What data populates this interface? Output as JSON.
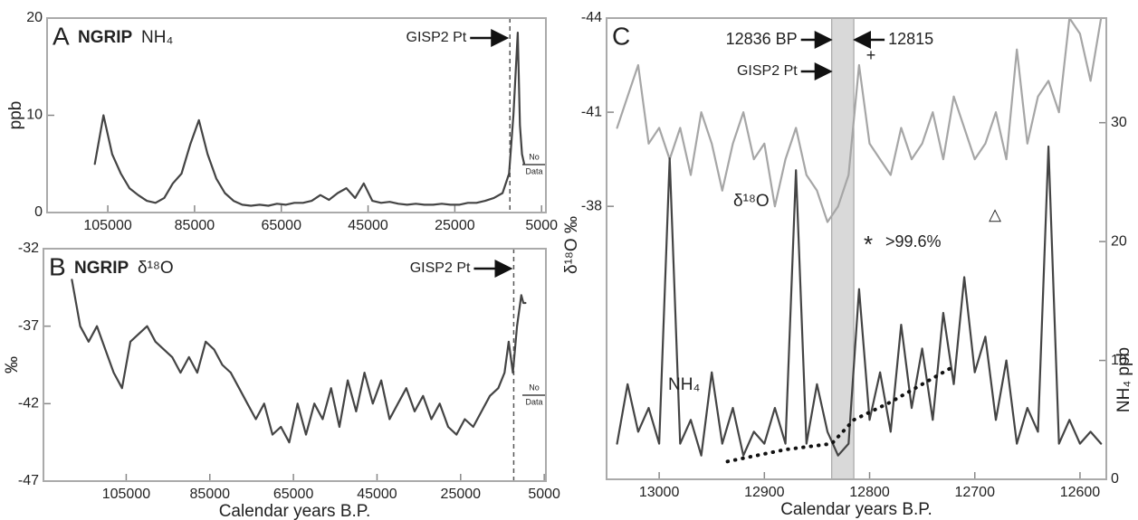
{
  "chart_data": [
    {
      "type": "line",
      "panel": "A",
      "title": "NGRIP",
      "subtitle": "NH₄",
      "ylabel": "ppb",
      "reference_line": 12300,
      "reference_label": "GISP2 Pt",
      "no_data_label": [
        "No",
        "Data"
      ],
      "color": "#444444",
      "xlim": [
        119000,
        4000
      ],
      "xticks": [
        105000,
        85000,
        65000,
        45000,
        25000,
        5000
      ],
      "ylim": [
        0,
        20
      ],
      "yticks": [
        0,
        10,
        20
      ],
      "x": [
        108000,
        106000,
        104000,
        102000,
        100000,
        98000,
        96000,
        94000,
        92000,
        90000,
        88000,
        86000,
        84000,
        82000,
        80000,
        78000,
        76000,
        74000,
        72000,
        70000,
        68000,
        66000,
        64000,
        62000,
        60000,
        58000,
        56000,
        54000,
        52000,
        50000,
        48000,
        46000,
        44000,
        42000,
        40000,
        38000,
        36000,
        34000,
        32000,
        30000,
        28000,
        26000,
        24000,
        22000,
        20000,
        18000,
        16000,
        14000,
        12500,
        11500,
        10500,
        10000,
        9500,
        9000
      ],
      "values": [
        5,
        10,
        6,
        4,
        2.5,
        1.8,
        1.2,
        1,
        1.5,
        3,
        4,
        7,
        9.5,
        6,
        3.5,
        2,
        1.2,
        0.8,
        0.7,
        0.8,
        0.7,
        0.9,
        0.8,
        1,
        1,
        1.2,
        1.8,
        1.3,
        2,
        2.5,
        1.5,
        3,
        1.2,
        1,
        1.1,
        0.9,
        0.8,
        0.9,
        0.8,
        0.8,
        0.9,
        0.8,
        0.8,
        1,
        1,
        1.2,
        1.5,
        2,
        4,
        10,
        18.5,
        9,
        6,
        5
      ]
    },
    {
      "type": "line",
      "panel": "B",
      "title": "NGRIP",
      "subtitle": "δ¹⁸O",
      "ylabel": "‰",
      "xlabel": "Calendar years B.P.",
      "reference_line": 12300,
      "reference_label": "GISP2 Pt",
      "no_data_label": [
        "No",
        "Data"
      ],
      "color": "#444444",
      "xlim": [
        124800,
        4600
      ],
      "xticks": [
        105000,
        85000,
        65000,
        45000,
        25000,
        5000
      ],
      "ylim": [
        -47,
        -32
      ],
      "yticks": [
        -47,
        -42,
        -37,
        -32
      ],
      "x": [
        118000,
        116000,
        114000,
        112000,
        110000,
        108000,
        106000,
        104000,
        102000,
        100000,
        98000,
        96000,
        94000,
        92000,
        90000,
        88000,
        86000,
        84000,
        82000,
        80000,
        78000,
        76000,
        74000,
        72000,
        70000,
        68000,
        66000,
        64000,
        62000,
        60000,
        58000,
        56000,
        54000,
        52000,
        50000,
        48000,
        46000,
        44000,
        42000,
        40000,
        38000,
        36000,
        34000,
        32000,
        30000,
        28000,
        26000,
        24000,
        22000,
        20000,
        18000,
        16000,
        14500,
        13500,
        12500,
        11500,
        10500,
        10000,
        9500
      ],
      "values": [
        -34,
        -37,
        -38,
        -37,
        -38.5,
        -40,
        -41,
        -38,
        -37.5,
        -37,
        -38,
        -38.5,
        -39,
        -40,
        -39,
        -40,
        -38,
        -38.5,
        -39.5,
        -40,
        -41,
        -42,
        -43,
        -42,
        -44,
        -43.5,
        -44.5,
        -42,
        -44,
        -42,
        -43,
        -41,
        -43.5,
        -40.5,
        -42.5,
        -40,
        -42,
        -40.5,
        -43,
        -42,
        -41,
        -42.5,
        -41.5,
        -43,
        -42,
        -43.5,
        -44,
        -43,
        -43.5,
        -42.5,
        -41.5,
        -41,
        -40,
        -38,
        -40,
        -37,
        -35,
        -35.5,
        -35.5
      ]
    },
    {
      "type": "line",
      "panel": "C",
      "xlabel": "Calendar years B.P.",
      "ylabel": "δ¹⁸O ‰",
      "y2label": "NH₄ ppb",
      "band": [
        12836,
        12815
      ],
      "band_labels": [
        "12836 BP",
        "12815"
      ],
      "reference_label": "GISP2 Pt",
      "annotations": [
        "+",
        "*",
        ">99.6%",
        "△"
      ],
      "xlim": [
        13050,
        12575
      ],
      "xticks": [
        13000,
        12900,
        12800,
        12700,
        12600
      ],
      "ylim": [
        -29.3,
        -44
      ],
      "yticks": [
        -44,
        -41,
        -38
      ],
      "y2lim": [
        0,
        38.8
      ],
      "y2ticks": [
        0,
        10,
        20,
        30
      ],
      "x": [
        13040,
        13030,
        13020,
        13010,
        13000,
        12990,
        12980,
        12970,
        12960,
        12950,
        12940,
        12930,
        12920,
        12910,
        12900,
        12890,
        12880,
        12870,
        12860,
        12850,
        12840,
        12830,
        12820,
        12810,
        12800,
        12790,
        12780,
        12770,
        12760,
        12750,
        12740,
        12730,
        12720,
        12710,
        12700,
        12690,
        12680,
        12670,
        12660,
        12650,
        12640,
        12630,
        12620,
        12610,
        12600,
        12590,
        12580
      ],
      "series": [
        {
          "name": "δ¹⁸O",
          "color": "#a6a6a6",
          "values": [
            -40.5,
            -41.5,
            -42.5,
            -40,
            -40.5,
            -39.5,
            -40.5,
            -39,
            -41,
            -40,
            -38.5,
            -40,
            -41,
            -39.5,
            -40,
            -38,
            -39.5,
            -40.5,
            -39,
            -38.5,
            -37.5,
            -38,
            -39,
            -42.5,
            -40,
            -39.5,
            -39,
            -40.5,
            -39.5,
            -40,
            -41,
            -39.5,
            -41.5,
            -40.5,
            -39.5,
            -40,
            -41,
            -39.5,
            -43,
            -40,
            -41.5,
            -42,
            -41,
            -44,
            -43.5,
            -42,
            -44
          ]
        },
        {
          "name": "NH₄",
          "color": "#444444",
          "axis": "y2",
          "values": [
            3,
            8,
            4,
            6,
            3,
            27,
            3,
            5,
            2,
            9,
            3,
            6,
            2,
            4,
            3,
            6,
            3,
            26,
            3,
            8,
            4,
            2,
            3,
            16,
            5,
            9,
            4,
            13,
            6,
            11,
            5,
            14,
            8,
            17,
            9,
            12,
            5,
            10,
            3,
            6,
            4,
            28,
            3,
            5,
            3,
            4,
            3
          ]
        }
      ],
      "trend": {
        "x": [
          12935,
          12880,
          12836,
          12815,
          12780,
          12720
        ],
        "values": [
          1.5,
          2.5,
          3,
          5,
          6.5,
          9.5
        ]
      }
    }
  ]
}
